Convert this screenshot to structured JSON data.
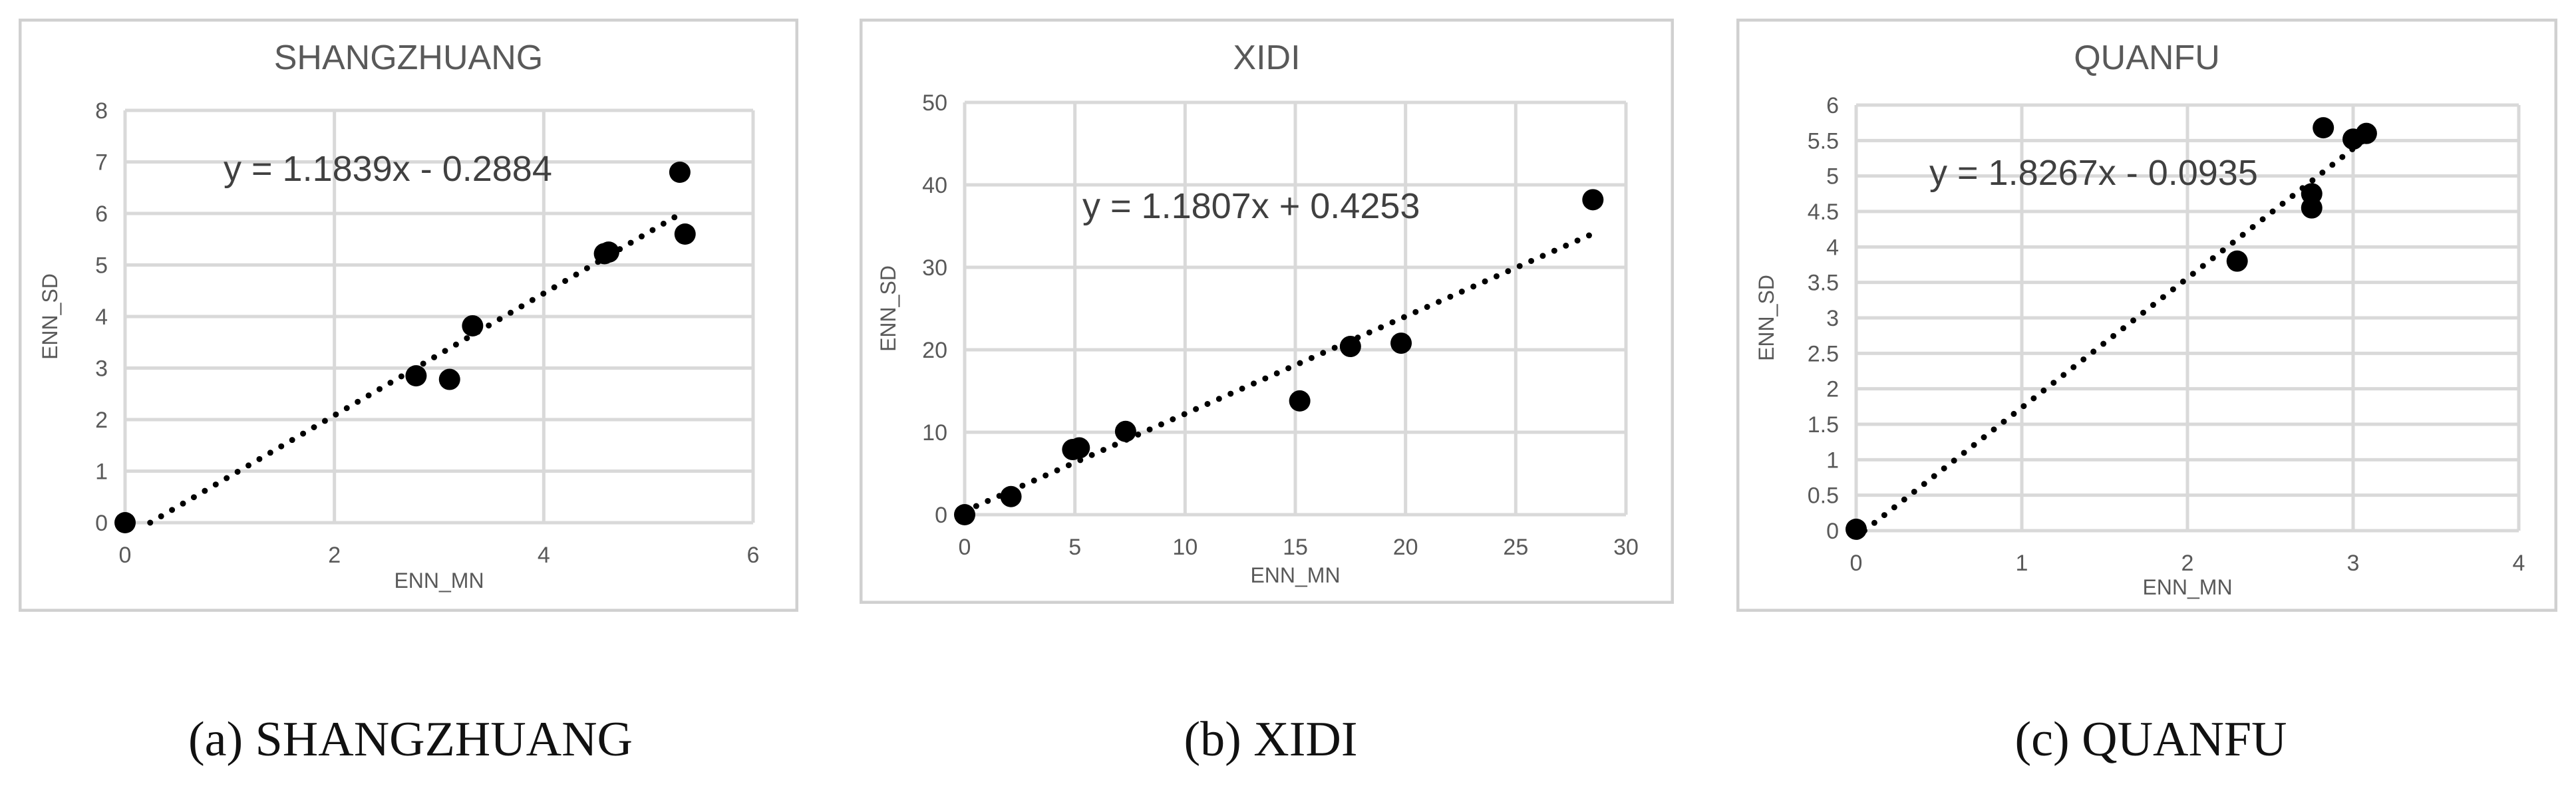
{
  "chart_data": [
    {
      "type": "scatter",
      "title": "SHANGZHUANG",
      "xlabel": "ENN_MN",
      "ylabel": "ENN_SD",
      "xlim": [
        0,
        6
      ],
      "ylim": [
        0,
        8
      ],
      "xticks": [
        "0",
        "2",
        "4",
        "6"
      ],
      "yticks": [
        "0",
        "1",
        "2",
        "3",
        "4",
        "5",
        "6",
        "7",
        "8"
      ],
      "points": [
        [
          0,
          0
        ],
        [
          2.78,
          2.85
        ],
        [
          3.1,
          2.78
        ],
        [
          3.32,
          3.82
        ],
        [
          4.58,
          5.22
        ],
        [
          4.62,
          5.25
        ],
        [
          5.3,
          6.8
        ],
        [
          5.35,
          5.6
        ]
      ],
      "trendline": {
        "slope": 1.1839,
        "intercept": -0.2884,
        "x_start": 0.24,
        "x_end": 5.35,
        "equation": "y = 1.1839x - 0.2884"
      },
      "grid": true,
      "caption": "(a) SHANGZHUANG"
    },
    {
      "type": "scatter",
      "title": "XIDI",
      "xlabel": "ENN_MN",
      "ylabel": "ENN_SD",
      "xlim": [
        0,
        30
      ],
      "ylim": [
        0,
        50
      ],
      "xticks": [
        "0",
        "5",
        "10",
        "15",
        "20",
        "25",
        "30"
      ],
      "yticks": [
        "0",
        "10",
        "20",
        "30",
        "40",
        "50"
      ],
      "points": [
        [
          0,
          0
        ],
        [
          2.1,
          2.2
        ],
        [
          4.9,
          7.9
        ],
        [
          5.2,
          8.1
        ],
        [
          7.3,
          10.1
        ],
        [
          15.2,
          13.8
        ],
        [
          17.5,
          20.4
        ],
        [
          19.8,
          20.8
        ],
        [
          28.5,
          38.2
        ]
      ],
      "trendline": {
        "slope": 1.1807,
        "intercept": 0.4253,
        "x_start": 0,
        "x_end": 28.5,
        "equation": "y = 1.1807x + 0.4253"
      },
      "grid": true,
      "caption": "(b) XIDI"
    },
    {
      "type": "scatter",
      "title": "QUANFU",
      "xlabel": "ENN_MN",
      "ylabel": "ENN_SD",
      "xlim": [
        0,
        4
      ],
      "ylim": [
        0,
        6
      ],
      "xticks": [
        "0",
        "1",
        "2",
        "3",
        "4"
      ],
      "yticks": [
        "0",
        "0.5",
        "1",
        "1.5",
        "2",
        "2.5",
        "3",
        "3.5",
        "4",
        "4.5",
        "5",
        "5.5",
        "6"
      ],
      "points": [
        [
          0,
          0.02
        ],
        [
          2.3,
          3.8
        ],
        [
          2.75,
          4.55
        ],
        [
          2.75,
          4.75
        ],
        [
          2.82,
          5.68
        ],
        [
          3.0,
          5.52
        ],
        [
          3.08,
          5.6
        ]
      ],
      "trendline": {
        "slope": 1.8267,
        "intercept": -0.0935,
        "x_start": 0.05,
        "x_end": 3.08,
        "equation": "y = 1.8267x - 0.0935"
      },
      "grid": true,
      "caption": "(c) QUANFU"
    }
  ]
}
